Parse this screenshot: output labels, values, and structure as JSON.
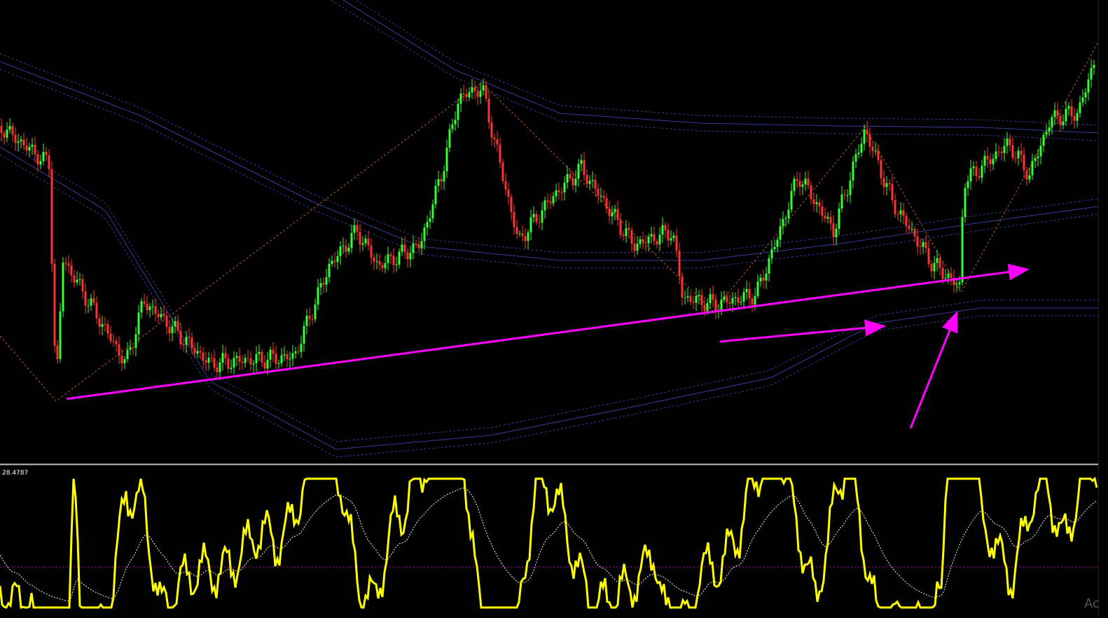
{
  "indicator_panel": {
    "label": "28.4787"
  },
  "watermark": "Ac"
}
